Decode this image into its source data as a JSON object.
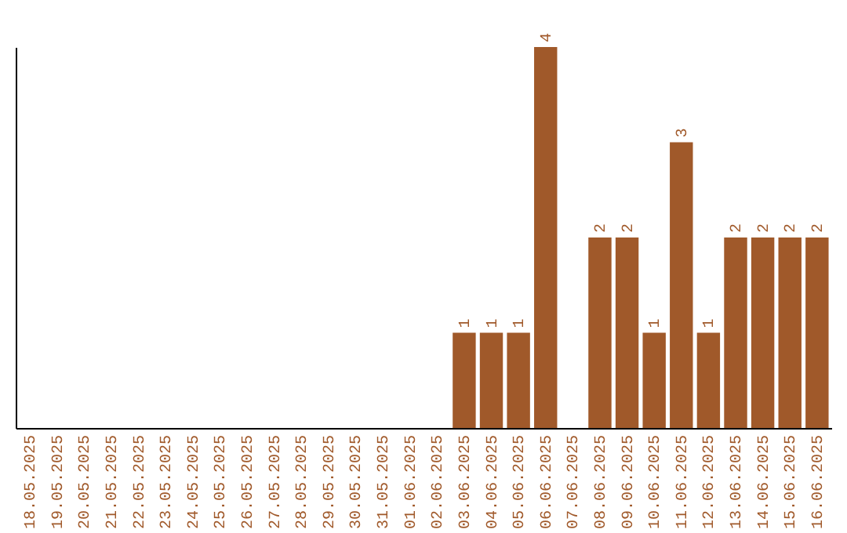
{
  "chart_data": {
    "type": "bar",
    "categories": [
      "18.05.2025",
      "19.05.2025",
      "20.05.2025",
      "21.05.2025",
      "22.05.2025",
      "23.05.2025",
      "24.05.2025",
      "25.05.2025",
      "26.05.2025",
      "27.05.2025",
      "28.05.2025",
      "29.05.2025",
      "30.05.2025",
      "31.05.2025",
      "01.06.2025",
      "02.06.2025",
      "03.06.2025",
      "04.06.2025",
      "05.06.2025",
      "06.06.2025",
      "07.06.2025",
      "08.06.2025",
      "09.06.2025",
      "10.06.2025",
      "11.06.2025",
      "12.06.2025",
      "13.06.2025",
      "14.06.2025",
      "15.06.2025",
      "16.06.2025"
    ],
    "values": [
      null,
      null,
      null,
      null,
      null,
      null,
      null,
      null,
      null,
      null,
      null,
      null,
      null,
      null,
      null,
      null,
      1,
      1,
      1,
      4,
      null,
      2,
      2,
      1,
      3,
      1,
      2,
      2,
      2,
      2
    ],
    "value_labels": [
      null,
      null,
      null,
      null,
      null,
      null,
      null,
      null,
      null,
      null,
      null,
      null,
      null,
      null,
      null,
      null,
      "1",
      "1",
      "1",
      "4",
      null,
      "2",
      "2",
      "1",
      "3",
      "1",
      "2",
      "2",
      "2",
      "2"
    ],
    "color": "#a0592a"
  }
}
